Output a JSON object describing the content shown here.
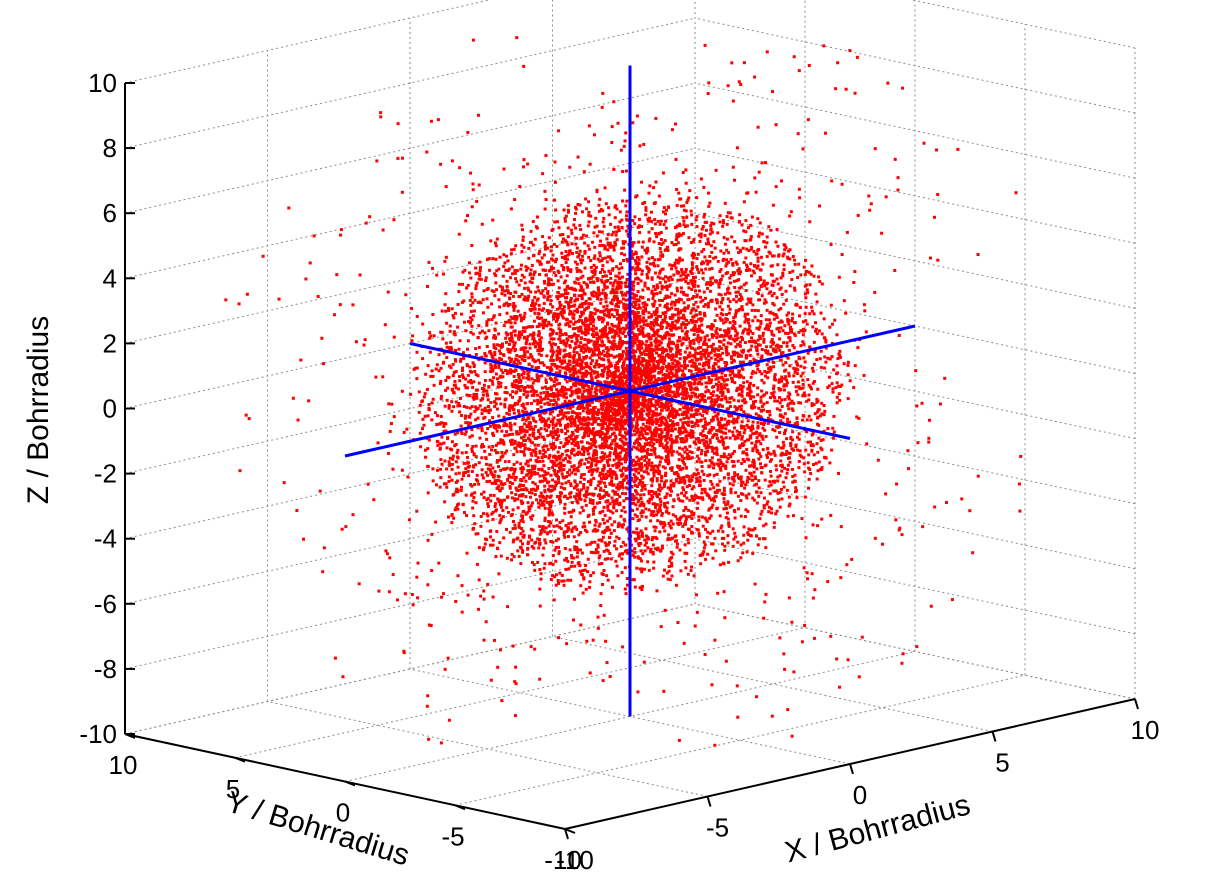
{
  "chart_data": {
    "type": "scatter",
    "title": "",
    "xlabel": "X / Bohrradius",
    "ylabel": "Y / Bohrradius",
    "zlabel": "Z / Bohrradius",
    "xlim": [
      -10,
      10
    ],
    "ylim": [
      -10,
      10
    ],
    "zlim": [
      -10,
      10
    ],
    "x_ticks": [
      "-10",
      "-5",
      "0",
      "5",
      "10"
    ],
    "y_ticks": [
      "-10",
      "-5",
      "0",
      "5",
      "10"
    ],
    "z_ticks": [
      "-10",
      "-8",
      "-6",
      "-4",
      "-2",
      "0",
      "2",
      "4",
      "6",
      "8",
      "10"
    ],
    "grid": true,
    "projection": "3d",
    "point_color": "#ff0000",
    "point_cloud": {
      "description_of_distribution": "spherically symmetric cloud centered at origin, densest near the center",
      "approx_point_count": 9000,
      "center": [
        0,
        0,
        0
      ],
      "characteristic_radius": 3.5
    },
    "axis_lines": [
      {
        "name": "x-axis-line",
        "from": [
          -10,
          0,
          0
        ],
        "to": [
          10,
          0,
          0
        ]
      },
      {
        "name": "y-axis-line",
        "from": [
          0,
          -10,
          0
        ],
        "to": [
          0,
          10,
          0
        ]
      },
      {
        "name": "z-axis-line",
        "from": [
          0,
          0,
          -10
        ],
        "to": [
          0,
          0,
          10
        ]
      }
    ],
    "axis_line_color": "#0000ff"
  }
}
